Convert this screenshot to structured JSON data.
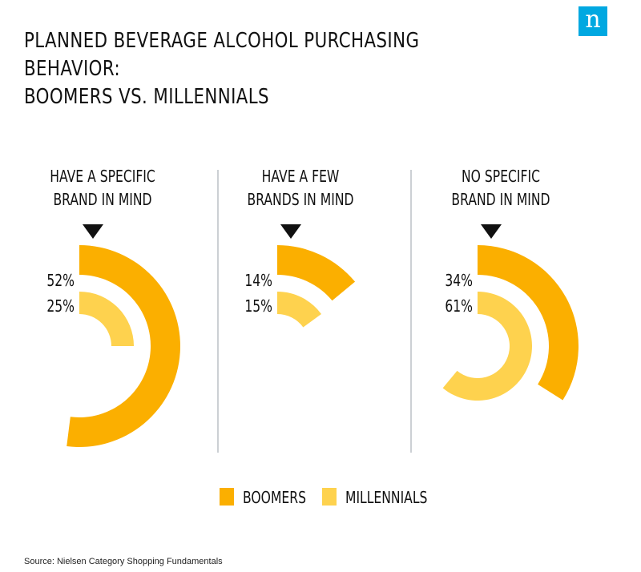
{
  "brand": {
    "logo_letter": "n",
    "logo_color": "#00a8e1"
  },
  "title_lines": [
    "PLANNED BEVERAGE ALCOHOL PURCHASING BEHAVIOR:",
    "BOOMERS VS. MILLENNIALS"
  ],
  "source": "Source: Nielsen Category Shopping Fundamentals",
  "colors": {
    "boomers": "#fbaf00",
    "millennials": "#fed24e",
    "divider": "#9aa0a8",
    "text": "#111111"
  },
  "chart_data": {
    "type": "radial-bar",
    "title": "PLANNED BEVERAGE ALCOHOL PURCHASING BEHAVIOR: BOOMERS VS. MILLENNIALS",
    "legend_position": "bottom-center",
    "series": [
      {
        "name": "BOOMERS",
        "color": "#fbaf00"
      },
      {
        "name": "MILLENNIALS",
        "color": "#fed24e"
      }
    ],
    "groups": [
      {
        "label_lines": [
          "HAVE A SPECIFIC",
          "BRAND IN MIND"
        ],
        "values": [
          52,
          25
        ],
        "labels": [
          "52%",
          "25%"
        ]
      },
      {
        "label_lines": [
          "HAVE A FEW",
          "BRANDS IN MIND"
        ],
        "values": [
          14,
          15
        ],
        "labels": [
          "14%",
          "15%"
        ]
      },
      {
        "label_lines": [
          "NO SPECIFIC",
          "BRAND IN MIND"
        ],
        "values": [
          34,
          61
        ],
        "labels": [
          "34%",
          "61%"
        ]
      }
    ]
  }
}
